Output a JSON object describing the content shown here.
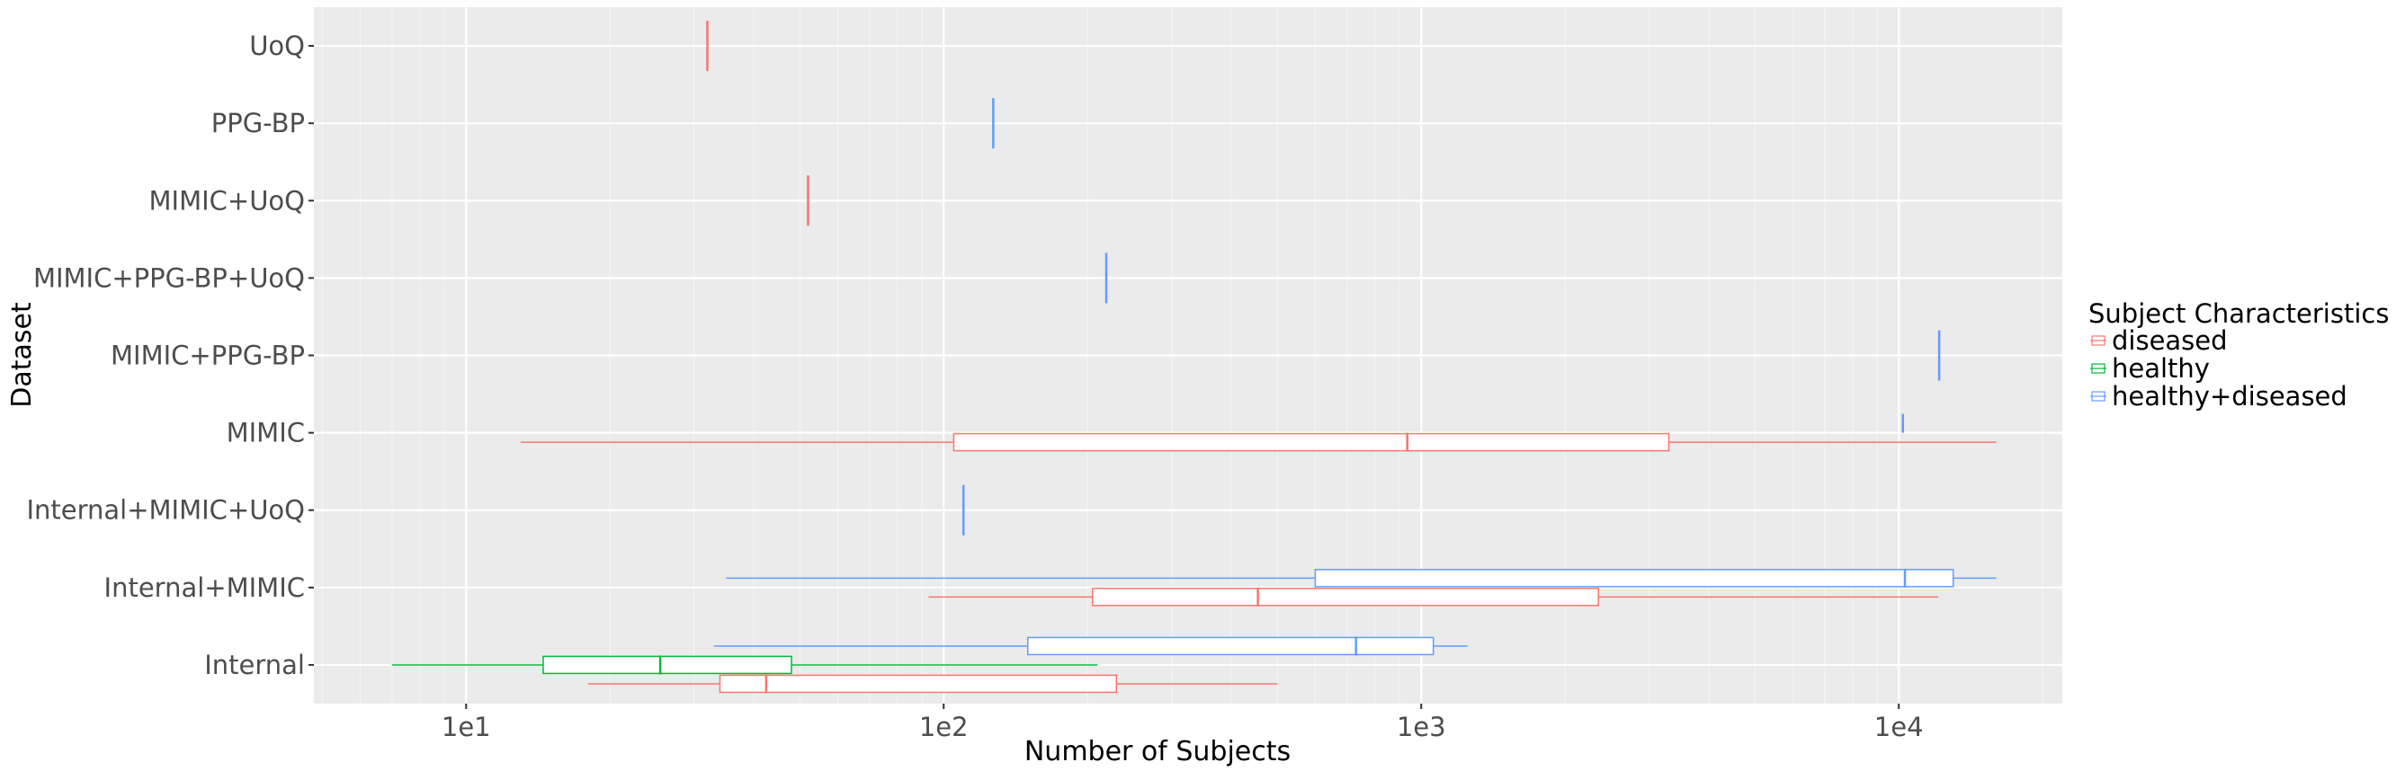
{
  "chart_data": {
    "type": "boxplot",
    "orientation": "horizontal",
    "xlabel": "Number of Subjects",
    "ylabel": "Dataset",
    "x_scale": "log10",
    "x_ticks": [
      10,
      100,
      1000,
      10000
    ],
    "x_tick_labels": [
      "1e1",
      "1e2",
      "1e3",
      "1e4"
    ],
    "xlim": [
      4.8,
      22000
    ],
    "grid": true,
    "categories": [
      "UoQ",
      "PPG-BP",
      "MIMIC+UoQ",
      "MIMIC+PPG-BP+UoQ",
      "MIMIC+PPG-BP",
      "MIMIC",
      "Internal+MIMIC+UoQ",
      "Internal+MIMIC",
      "Internal"
    ],
    "legend": {
      "title": "Subject Characteristics",
      "position": "right",
      "items": [
        {
          "label": "diseased",
          "color": "#F8766D"
        },
        {
          "label": "healthy",
          "color": "#00BA38"
        },
        {
          "label": "healthy+diseased",
          "color": "#619CFF"
        }
      ]
    },
    "boxes": [
      {
        "category": "UoQ",
        "group": "diseased",
        "min": 32,
        "q1": 32,
        "median": 32,
        "q3": 32,
        "max": 32
      },
      {
        "category": "PPG-BP",
        "group": "healthy+diseased",
        "min": 127,
        "q1": 127,
        "median": 127,
        "q3": 127,
        "max": 127
      },
      {
        "category": "MIMIC+UoQ",
        "group": "diseased",
        "min": 52,
        "q1": 52,
        "median": 52,
        "q3": 52,
        "max": 52
      },
      {
        "category": "MIMIC+PPG-BP+UoQ",
        "group": "healthy+diseased",
        "min": 219,
        "q1": 219,
        "median": 219,
        "q3": 219,
        "max": 219
      },
      {
        "category": "MIMIC+PPG-BP",
        "group": "healthy+diseased",
        "min": 12150,
        "q1": 12150,
        "median": 12150,
        "q3": 12150,
        "max": 12150
      },
      {
        "category": "MIMIC",
        "group": "healthy+diseased",
        "min": 10200,
        "q1": 10200,
        "median": 10200,
        "q3": 10200,
        "max": 10200
      },
      {
        "category": "MIMIC",
        "group": "diseased",
        "min": 13,
        "q1": 105,
        "median": 935,
        "q3": 3300,
        "max": 16000
      },
      {
        "category": "Internal+MIMIC+UoQ",
        "group": "healthy+diseased",
        "min": 110,
        "q1": 110,
        "median": 110,
        "q3": 110,
        "max": 110
      },
      {
        "category": "Internal+MIMIC",
        "group": "healthy+diseased",
        "min": 35,
        "q1": 600,
        "median": 10300,
        "q3": 13000,
        "max": 16000
      },
      {
        "category": "Internal+MIMIC",
        "group": "diseased",
        "min": 93,
        "q1": 205,
        "median": 455,
        "q3": 2350,
        "max": 12100
      },
      {
        "category": "Internal",
        "group": "healthy+diseased",
        "min": 33,
        "q1": 150,
        "median": 730,
        "q3": 1060,
        "max": 1250
      },
      {
        "category": "Internal",
        "group": "healthy",
        "min": 7,
        "q1": 14.5,
        "median": 25.5,
        "q3": 48,
        "max": 210
      },
      {
        "category": "Internal",
        "group": "diseased",
        "min": 18,
        "q1": 34,
        "median": 42.5,
        "q3": 230,
        "max": 500
      }
    ]
  }
}
